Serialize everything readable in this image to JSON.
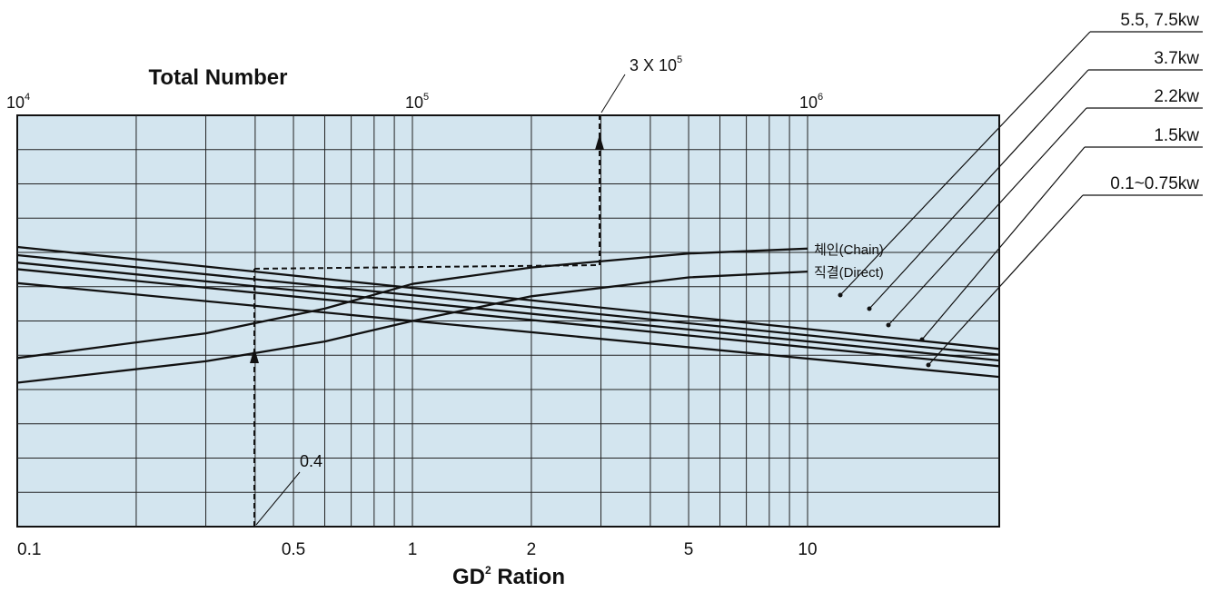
{
  "chart_data": {
    "type": "line",
    "title": "",
    "top_axis": {
      "label": "Total Number",
      "scale": "log",
      "ticks": [
        {
          "base": "10",
          "exp": "4",
          "value": 10000
        },
        {
          "base": "10",
          "exp": "5",
          "value": 100000
        },
        {
          "base": "10",
          "exp": "6",
          "value": 1000000
        }
      ]
    },
    "bottom_axis": {
      "label_main": "GD",
      "label_sup": "2",
      "label_rest": " Ration",
      "scale": "log",
      "xlim": [
        0.1,
        10
      ],
      "tick_labels": [
        "0.1",
        "0.5",
        "1",
        "2",
        "5",
        "10"
      ],
      "tick_values": [
        0.1,
        0.5,
        1,
        2,
        5,
        10
      ]
    },
    "grid": true,
    "colors": {
      "background": "#d3e5ef",
      "grid": "#222222",
      "line": "#111111"
    },
    "motor_lines": [
      {
        "name": "5.5, 7.5kw",
        "y_start": 3.4,
        "y_end": 2.16
      },
      {
        "name": "3.7kw",
        "y_start": 3.3,
        "y_end": 2.09
      },
      {
        "name": "2.2kw",
        "y_start": 3.21,
        "y_end": 2.02
      },
      {
        "name": "1.5kw",
        "y_start": 3.13,
        "y_end": 1.95
      },
      {
        "name": "0.1~0.75kw",
        "y_start": 2.96,
        "y_end": 1.82
      }
    ],
    "gd2_curves": [
      {
        "name": "체인(Chain)",
        "x": [
          0.1,
          0.3,
          0.6,
          1.0,
          2.0,
          5.0,
          10.0
        ],
        "y": [
          2.05,
          2.35,
          2.65,
          2.95,
          3.15,
          3.32,
          3.38
        ]
      },
      {
        "name": "직결(Direct)",
        "x": [
          0.1,
          0.3,
          0.6,
          1.0,
          2.0,
          5.0,
          10.0
        ],
        "y": [
          1.75,
          2.01,
          2.25,
          2.5,
          2.8,
          3.03,
          3.1
        ]
      }
    ],
    "annotations": {
      "gd2_marker": "0.4",
      "total_marker_base": "3 X 10",
      "total_marker_exp": "5"
    }
  }
}
